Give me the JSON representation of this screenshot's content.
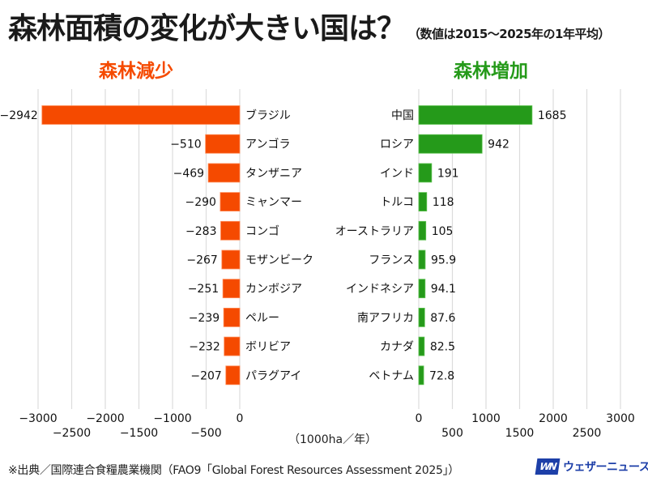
{
  "title": {
    "main": "森林面積の変化が大きい国は？",
    "sub": "（数値は2015～2025年の1年平均）"
  },
  "colors": {
    "decrease": "#f54a00",
    "increase": "#259a1a",
    "grid": "#dcdcdc",
    "logo": "#1d3fa8"
  },
  "unit_label": "（1000ha／年）",
  "source_note": "※出典／国際連合食糧農業機関（FAO9「Global Forest Resources Assessment 2025」）",
  "logo": {
    "mark": "WN",
    "name": "ウェザーニュース"
  },
  "chart_data": [
    {
      "type": "bar",
      "orientation": "horizontal",
      "title": "森林減少",
      "categories": [
        "ブラジル",
        "アンゴラ",
        "タンザニア",
        "ミャンマー",
        "コンゴ",
        "モザンビーク",
        "カンボジア",
        "ペルー",
        "ボリビア",
        "パラグアイ"
      ],
      "values": [
        -2942,
        -510,
        -469,
        -290,
        -283,
        -267,
        -251,
        -239,
        -232,
        -207
      ],
      "value_labels": [
        "−2942",
        "−510",
        "−469",
        "−290",
        "−283",
        "−267",
        "−251",
        "−239",
        "−232",
        "−207"
      ],
      "xlim": [
        -3000,
        0
      ],
      "ticks": [
        -3000,
        -2500,
        -2000,
        -1500,
        -1000,
        -500,
        0
      ],
      "tick_labels": [
        "−3000",
        "−2500",
        "−2000",
        "−1500",
        "−1000",
        "−500",
        "0"
      ],
      "grid": true,
      "xlabel": "（1000ha／年）"
    },
    {
      "type": "bar",
      "orientation": "horizontal",
      "title": "森林増加",
      "categories": [
        "中国",
        "ロシア",
        "インド",
        "トルコ",
        "オーストラリア",
        "フランス",
        "インドネシア",
        "南アフリカ",
        "カナダ",
        "ベトナム"
      ],
      "values": [
        1685,
        942,
        191,
        118,
        105,
        95.9,
        94.1,
        87.6,
        82.5,
        72.8
      ],
      "value_labels": [
        "1685",
        "942",
        "191",
        "118",
        "105",
        "95.9",
        "94.1",
        "87.6",
        "82.5",
        "72.8"
      ],
      "xlim": [
        0,
        3000
      ],
      "ticks": [
        0,
        500,
        1000,
        1500,
        2000,
        2500,
        3000
      ],
      "tick_labels": [
        "0",
        "500",
        "1000",
        "1500",
        "2000",
        "2500",
        "3000"
      ],
      "grid": true,
      "xlabel": "（1000ha／年）"
    }
  ]
}
